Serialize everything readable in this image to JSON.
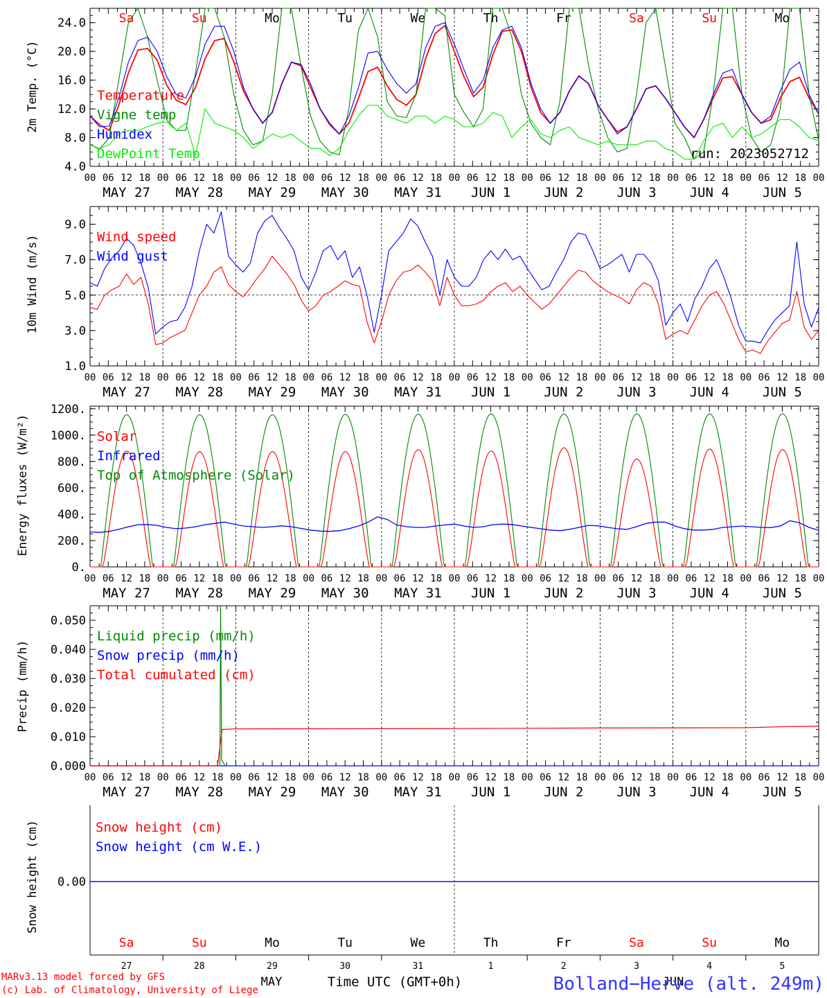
{
  "chart_data": [
    {
      "type": "line",
      "ylabel": "2m Temp. (°C)",
      "ylim": [
        4.0,
        26.0
      ],
      "yticks": [
        "4.0",
        "8.0",
        "12.0",
        "16.0",
        "20.0",
        "24.0"
      ],
      "ytick_values": [
        4,
        8,
        12,
        16,
        20,
        24
      ],
      "day_names": [
        "Sa",
        "Su",
        "Mo",
        "Tu",
        "We",
        "Th",
        "Fr",
        "Sa",
        "Su",
        "Mo"
      ],
      "run_label": "run: 2023052712",
      "series": [
        {
          "name": "Temperature",
          "color": "#ff0000",
          "values": [
            11.0,
            9.8,
            9.0,
            12.5,
            17.0,
            20.2,
            20.4,
            18.8,
            15.3,
            13.2,
            12.6,
            15.0,
            19.0,
            21.5,
            21.8,
            18.5,
            14.5,
            12.0,
            10.0,
            11.5,
            15.5,
            18.5,
            18.0,
            15.0,
            12.0,
            9.8,
            8.5,
            10.0,
            13.5,
            17.2,
            17.8,
            15.2,
            13.3,
            12.5,
            14.0,
            19.0,
            22.5,
            23.6,
            20.0,
            16.5,
            13.7,
            15.0,
            19.5,
            22.8,
            23.0,
            20.0,
            15.0,
            11.5,
            10.0,
            11.5,
            14.5,
            16.6,
            15.5,
            12.5,
            10.5,
            8.8,
            9.5,
            12.0,
            14.8,
            15.2,
            13.5,
            11.5,
            9.5,
            8.0,
            10.5,
            13.5,
            16.3,
            16.5,
            14.0,
            11.5,
            10.0,
            10.5,
            13.5,
            15.8,
            16.4,
            13.5,
            11.3
          ]
        },
        {
          "name": "Vigne temp",
          "color": "#008800",
          "values": [
            7.0,
            6.4,
            8.0,
            16.0,
            24.0,
            26.0,
            22.0,
            16.0,
            10.5,
            9.0,
            9.0,
            17.0,
            26.0,
            26.0,
            22.0,
            14.0,
            9.0,
            7.0,
            7.5,
            14.0,
            26.0,
            26.0,
            18.0,
            11.0,
            7.5,
            6.0,
            5.6,
            12.0,
            23.0,
            26.0,
            22.0,
            13.0,
            11.0,
            10.8,
            14.0,
            26.0,
            26.0,
            25.0,
            14.0,
            11.5,
            9.5,
            12.0,
            26.0,
            26.0,
            22.0,
            14.0,
            10.0,
            8.0,
            7.0,
            13.0,
            26.0,
            26.0,
            18.0,
            12.0,
            8.0,
            6.0,
            6.5,
            14.0,
            24.0,
            26.0,
            18.0,
            10.0,
            8.0,
            5.0,
            6.0,
            14.0,
            26.0,
            26.0,
            14.0,
            8.0,
            6.0,
            7.0,
            12.0,
            26.0,
            26.0,
            14.0,
            7.6
          ]
        },
        {
          "name": "Humidex",
          "color": "#0000ff",
          "values": [
            11.0,
            9.5,
            9.6,
            13.5,
            18.5,
            21.5,
            22.0,
            20.0,
            16.5,
            14.0,
            13.5,
            16.5,
            21.0,
            23.5,
            23.5,
            20.0,
            15.0,
            12.0,
            10.0,
            11.5,
            15.5,
            18.5,
            18.2,
            15.5,
            12.0,
            10.0,
            8.5,
            11.0,
            15.0,
            19.8,
            20.0,
            17.5,
            15.5,
            14.2,
            15.5,
            20.5,
            23.5,
            24.0,
            21.0,
            17.5,
            14.2,
            16.0,
            20.5,
            23.0,
            23.5,
            20.5,
            15.5,
            12.0,
            10.0,
            11.5,
            14.5,
            16.6,
            15.5,
            12.5,
            10.5,
            8.5,
            9.5,
            12.0,
            14.8,
            15.2,
            13.5,
            11.5,
            9.5,
            8.0,
            10.5,
            14.0,
            17.0,
            17.5,
            14.0,
            11.5,
            10.0,
            11.0,
            14.5,
            17.5,
            18.5,
            14.0,
            11.3
          ]
        },
        {
          "name": "DewPoint Temp",
          "color": "#00ee00",
          "values": [
            7.0,
            6.5,
            7.0,
            8.5,
            9.0,
            9.0,
            9.5,
            10.0,
            10.2,
            9.0,
            10.0,
            5.5,
            12.0,
            10.0,
            9.5,
            9.0,
            8.0,
            6.5,
            7.5,
            8.5,
            8.0,
            8.5,
            7.5,
            6.5,
            6.5,
            5.5,
            6.5,
            9.0,
            11.0,
            12.5,
            12.5,
            11.0,
            10.5,
            10.0,
            11.0,
            11.0,
            10.0,
            11.0,
            10.5,
            9.5,
            9.5,
            10.0,
            11.5,
            11.0,
            8.0,
            9.5,
            10.5,
            8.5,
            8.0,
            9.0,
            9.5,
            8.0,
            7.5,
            7.0,
            7.5,
            7.0,
            7.0,
            7.0,
            7.5,
            7.5,
            6.5,
            6.0,
            5.0,
            5.0,
            7.5,
            9.5,
            10.0,
            8.0,
            9.5,
            8.0,
            8.5,
            9.5,
            10.5,
            10.5,
            9.5,
            8.0,
            7.6
          ]
        }
      ]
    },
    {
      "type": "line",
      "ylabel": "10m Wind (m/s)",
      "ylim": [
        1.0,
        10.0
      ],
      "yticks": [
        "1.0",
        "3.0",
        "5.0",
        "7.0",
        "9.0"
      ],
      "ytick_values": [
        1,
        3,
        5,
        7,
        9
      ],
      "reference_line": 5.0,
      "series": [
        {
          "name": "Wind speed",
          "color": "#ff0000",
          "values": [
            4.3,
            4.2,
            5.0,
            5.3,
            5.5,
            6.2,
            5.6,
            6.0,
            4.5,
            2.2,
            2.3,
            2.6,
            2.8,
            3.0,
            4.0,
            5.0,
            5.5,
            6.3,
            6.6,
            5.6,
            5.2,
            4.9,
            5.4,
            6.0,
            6.5,
            7.2,
            6.7,
            6.2,
            5.6,
            4.7,
            4.1,
            4.4,
            5.0,
            5.2,
            5.5,
            5.8,
            5.6,
            5.5,
            3.5,
            2.3,
            3.5,
            5.0,
            5.8,
            6.3,
            6.4,
            6.7,
            6.3,
            5.8,
            4.4,
            6.0,
            5.0,
            4.4,
            4.4,
            4.5,
            4.7,
            5.2,
            5.5,
            5.7,
            5.2,
            5.5,
            5.0,
            4.6,
            4.2,
            4.5,
            5.0,
            5.5,
            6.0,
            6.4,
            6.3,
            5.8,
            5.5,
            5.2,
            5.0,
            4.8,
            4.5,
            5.3,
            5.7,
            5.5,
            4.5,
            2.5,
            2.8,
            3.0,
            2.8,
            3.6,
            4.4,
            5.0,
            5.2,
            4.5,
            3.5,
            2.5,
            1.8,
            1.9,
            1.7,
            2.4,
            2.9,
            3.4,
            3.6,
            5.2,
            3.2,
            2.5,
            3.0
          ]
        },
        {
          "name": "Wind gust",
          "color": "#0000ff",
          "values": [
            5.7,
            5.5,
            6.5,
            7.1,
            7.5,
            8.2,
            7.8,
            6.8,
            5.4,
            2.8,
            3.2,
            3.5,
            3.6,
            4.3,
            5.5,
            7.5,
            9.0,
            8.5,
            9.7,
            7.2,
            6.7,
            6.3,
            6.8,
            8.5,
            9.2,
            9.5,
            8.8,
            8.2,
            7.5,
            6.0,
            5.3,
            6.3,
            7.5,
            7.8,
            7.0,
            7.5,
            6.0,
            6.6,
            5.0,
            2.9,
            5.0,
            7.5,
            8.0,
            8.5,
            9.3,
            8.9,
            8.0,
            7.2,
            5.0,
            7.0,
            6.0,
            5.5,
            5.5,
            6.0,
            7.0,
            7.5,
            7.0,
            7.6,
            7.0,
            7.2,
            6.5,
            5.9,
            5.3,
            5.5,
            6.3,
            7.0,
            8.0,
            8.5,
            8.4,
            7.5,
            6.5,
            6.7,
            7.0,
            7.3,
            6.3,
            7.3,
            7.3,
            6.8,
            5.8,
            3.3,
            4.0,
            4.5,
            3.5,
            4.8,
            5.5,
            6.5,
            7.0,
            6.0,
            4.8,
            3.3,
            2.4,
            2.4,
            2.3,
            3.0,
            3.6,
            4.0,
            4.4,
            8.0,
            4.5,
            3.2,
            4.3
          ]
        }
      ]
    },
    {
      "type": "line",
      "ylabel": "Energy fluxes (W/m²)",
      "ylim": [
        0,
        1220
      ],
      "yticks": [
        "0.",
        "200.",
        "400.",
        "600.",
        "800.",
        "1000.",
        "1200."
      ],
      "ytick_values": [
        0,
        200,
        400,
        600,
        800,
        1000,
        1200
      ],
      "daily_peaks": {
        "Solar": [
          880,
          875,
          875,
          875,
          890,
          880,
          905,
          820,
          895,
          890
        ],
        "Top of Atmosphere (Solar)": [
          1155,
          1155,
          1155,
          1158,
          1160,
          1162,
          1162,
          1162,
          1162,
          1163
        ]
      },
      "series": [
        {
          "name": "Solar",
          "color": "#ff0000"
        },
        {
          "name": "Infrared",
          "color": "#0000ff",
          "values": [
            265,
            262,
            270,
            285,
            305,
            320,
            322,
            315,
            300,
            290,
            295,
            305,
            320,
            330,
            340,
            325,
            310,
            305,
            300,
            305,
            312,
            305,
            292,
            280,
            272,
            270,
            275,
            290,
            310,
            340,
            380,
            360,
            318,
            305,
            300,
            300,
            310,
            318,
            325,
            310,
            300,
            305,
            320,
            325,
            322,
            310,
            300,
            290,
            280,
            275,
            285,
            300,
            315,
            312,
            300,
            290,
            285,
            305,
            330,
            340,
            340,
            310,
            290,
            280,
            280,
            285,
            300,
            305,
            310,
            305,
            300,
            298,
            310,
            350,
            335,
            300,
            278
          ]
        },
        {
          "name": "Top of Atmosphere (Solar)",
          "color": "#008800"
        }
      ]
    },
    {
      "type": "line",
      "ylabel": "Precip (mm/h)",
      "ylim": [
        0,
        0.055
      ],
      "yticks": [
        "0.000",
        "0.010",
        "0.020",
        "0.030",
        "0.040",
        "0.050"
      ],
      "ytick_values": [
        0,
        0.01,
        0.02,
        0.03,
        0.04,
        0.05
      ],
      "series": [
        {
          "name": "Liquid precip (mm/h)",
          "color": "#008800",
          "peak_time_hours": 43,
          "peak_value": 0.055
        },
        {
          "name": "Snow precip (mm/h)",
          "color": "#0000ff"
        },
        {
          "name": "Total cumulated (cm)",
          "color": "#ff0000",
          "points": [
            [
              0,
              0
            ],
            [
              42,
              0
            ],
            [
              43.5,
              0.0125
            ],
            [
              48,
              0.0127
            ],
            [
              120,
              0.0128
            ],
            [
              168,
              0.013
            ],
            [
              216,
              0.0131
            ],
            [
              230,
              0.0135
            ],
            [
              240,
              0.0136
            ]
          ]
        }
      ]
    },
    {
      "type": "line",
      "ylabel": "Snow height (cm)",
      "yticks": [
        "0.00"
      ],
      "series": [
        {
          "name": "Snow height (cm)",
          "color": "#ff0000",
          "values": [
            0.0,
            0.0
          ]
        },
        {
          "name": "Snow height (cm W.E.)",
          "color": "#0000ff",
          "values": [
            0.0,
            0.0
          ]
        }
      ]
    }
  ],
  "time_axis": {
    "hour_ticks": [
      "00",
      "06",
      "12",
      "18"
    ],
    "final_tick": "00",
    "date_labels": [
      "MAY 27",
      "MAY 28",
      "MAY 29",
      "MAY 30",
      "MAY 31",
      "JUN  1",
      "JUN  2",
      "JUN  3",
      "JUN  4",
      "JUN  5"
    ],
    "day_numbers": [
      "27",
      "28",
      "29",
      "30",
      "31",
      "1",
      "2",
      "3",
      "4",
      "5"
    ],
    "day_names": [
      "Sa",
      "Su",
      "Mo",
      "Tu",
      "We",
      "Th",
      "Fr",
      "Sa",
      "Su",
      "Mo"
    ],
    "weekend_indices": [
      0,
      1,
      7,
      8
    ],
    "month_labels": [
      "MAY",
      "JUN"
    ],
    "xlabel": "Time UTC (GMT+0h)"
  },
  "footer": {
    "credit_line1": "MARv3.13 model forced by GFS",
    "credit_line2": "(c) Lab. of Climatology, University of Liege",
    "station": "Bolland−Herve (alt. 249m)"
  },
  "colors": {
    "weekend_day": "#ff0000",
    "weekday_day": "#000000",
    "station_title": "#3333ff",
    "credits": "#ff0000"
  }
}
